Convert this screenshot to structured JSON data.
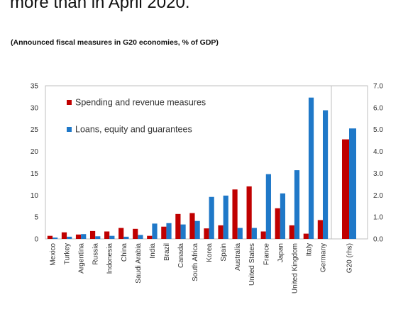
{
  "headline": "more than in April 2020.",
  "chart_data": {
    "type": "bar",
    "title": "(Announced fiscal measures in G20 economies, % of GDP)",
    "categories": [
      "Mexico",
      "Turkey",
      "Argentina",
      "Russia",
      "Indonesia",
      "China",
      "Saudi Arabia",
      "India",
      "Brazil",
      "Canada",
      "South Africa",
      "Korea",
      "Spain",
      "Australia",
      "United States",
      "France",
      "Japan",
      "United Kingdom",
      "Italy",
      "Germany",
      "G20 (rhs)"
    ],
    "series": [
      {
        "name": "Spending and revenue measures",
        "color": "#c00000",
        "values": [
          0.7,
          1.5,
          1.0,
          1.8,
          1.7,
          2.5,
          2.3,
          0.7,
          2.8,
          5.7,
          5.9,
          2.4,
          3.1,
          11.3,
          12.0,
          1.7,
          7.0,
          3.1,
          1.2,
          4.3,
          4.55
        ]
      },
      {
        "name": "Loans, equity and guarantees",
        "color": "#1f78c8",
        "values": [
          0.3,
          0.5,
          1.1,
          0.6,
          0.7,
          0.5,
          0.9,
          3.5,
          3.6,
          3.3,
          4.1,
          9.6,
          9.9,
          2.5,
          2.5,
          14.8,
          10.4,
          15.7,
          32.3,
          29.4,
          5.05
        ]
      }
    ],
    "ylim": [
      0,
      35
    ],
    "yticks": [
      0,
      5,
      10,
      15,
      20,
      25,
      30,
      35
    ],
    "y2lim": [
      0,
      7
    ],
    "y2ticks": [
      "0.0",
      "1.0",
      "2.0",
      "3.0",
      "4.0",
      "5.0",
      "6.0",
      "7.0"
    ],
    "secondary_axis_categories": [
      "G20 (rhs)"
    ],
    "legend_position": "top-left",
    "grid": false
  }
}
